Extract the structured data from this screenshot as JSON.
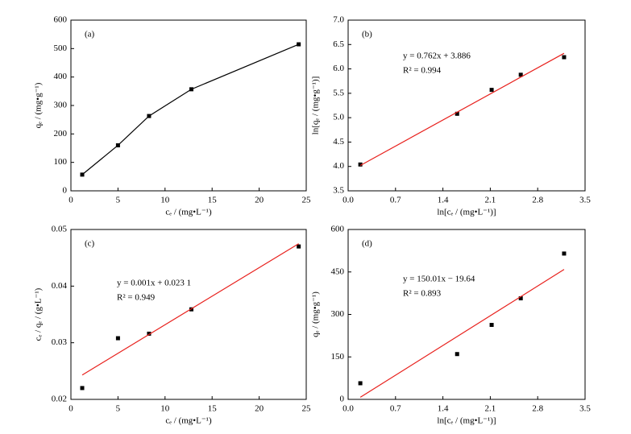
{
  "chart_data": [
    {
      "type": "line",
      "label": "(a)",
      "xlabel": "cₑ / (mg•L⁻¹)",
      "ylabel": "qₑ / (mg•g⁻¹)",
      "xlim": [
        0,
        25
      ],
      "xticks": [
        0,
        5,
        10,
        15,
        20,
        25
      ],
      "ylim": [
        0,
        600
      ],
      "yticks": [
        0,
        100,
        200,
        300,
        400,
        500,
        600
      ],
      "series": [
        {
          "color": "#000000",
          "marker": "square",
          "line": true,
          "x": [
            1.2,
            5.0,
            8.3,
            12.8,
            24.2
          ],
          "values": [
            57,
            160,
            263,
            357,
            515
          ]
        }
      ]
    },
    {
      "type": "scatter",
      "label": "(b)",
      "xlabel": "ln[cₑ / (mg•L⁻¹)]",
      "ylabel": "ln[qₑ / (mg•g⁻¹)]",
      "annotations": [
        "y = 0.762x + 3.886",
        "R² = 0.994"
      ],
      "xlim": [
        0,
        3.5
      ],
      "xticks": [
        {
          "value": 0,
          "label": "0.0"
        },
        0.7,
        1.4,
        2.1,
        2.8,
        3.5
      ],
      "ylim": [
        3.5,
        7
      ],
      "yticks": [
        3.5,
        {
          "value": 4,
          "label": "4.0"
        },
        4.5,
        {
          "value": 5,
          "label": "5.0"
        },
        5.5,
        {
          "value": 6,
          "label": "6.0"
        },
        6.5,
        {
          "value": 7,
          "label": "7.0"
        }
      ],
      "series": [
        {
          "color": "#000000",
          "marker": "square",
          "line": false,
          "x": [
            0.18,
            1.61,
            2.12,
            2.55,
            3.19
          ],
          "values": [
            4.04,
            5.08,
            5.57,
            5.88,
            6.24
          ]
        },
        {
          "color": "#e8201c",
          "line": true,
          "x": [
            0.18,
            3.19
          ],
          "values": [
            4.02,
            6.32
          ]
        }
      ]
    },
    {
      "type": "scatter",
      "label": "(c)",
      "xlabel": "cₑ / (mg•L⁻¹)",
      "ylabel": "cₑ / qₑ / (g•L⁻¹)",
      "annotations": [
        "y = 0.001x + 0.023 1",
        "R² = 0.949"
      ],
      "xlim": [
        0,
        25
      ],
      "xticks": [
        0,
        5,
        10,
        15,
        20,
        25
      ],
      "ylim": [
        0.02,
        0.05
      ],
      "yticks": [
        0.02,
        0.03,
        0.04,
        0.05
      ],
      "series": [
        {
          "color": "#000000",
          "marker": "square",
          "line": false,
          "x": [
            1.2,
            5.0,
            8.3,
            12.8,
            24.2
          ],
          "values": [
            0.022,
            0.0308,
            0.0316,
            0.0359,
            0.047
          ]
        },
        {
          "color": "#e8201c",
          "line": true,
          "x": [
            1.2,
            24.2
          ],
          "values": [
            0.0243,
            0.0475
          ]
        }
      ]
    },
    {
      "type": "scatter",
      "label": "(d)",
      "xlabel": "ln[cₑ / (mg•L⁻¹)]",
      "ylabel": "qₑ / (mg•g⁻¹)",
      "annotations": [
        "y = 150.01x − 19.64",
        "R² = 0.893"
      ],
      "xlim": [
        0,
        3.5
      ],
      "xticks": [
        {
          "value": 0,
          "label": "0.0"
        },
        0.7,
        1.4,
        2.1,
        2.8,
        3.5
      ],
      "ylim": [
        0,
        600
      ],
      "yticks": [
        0,
        150,
        300,
        450,
        600
      ],
      "series": [
        {
          "color": "#000000",
          "marker": "square",
          "line": false,
          "x": [
            0.18,
            1.61,
            2.12,
            2.55,
            3.19
          ],
          "values": [
            57,
            160,
            263,
            357,
            515
          ]
        },
        {
          "color": "#e8201c",
          "line": true,
          "x": [
            0.18,
            3.19
          ],
          "values": [
            7.4,
            458.9
          ]
        }
      ]
    }
  ]
}
